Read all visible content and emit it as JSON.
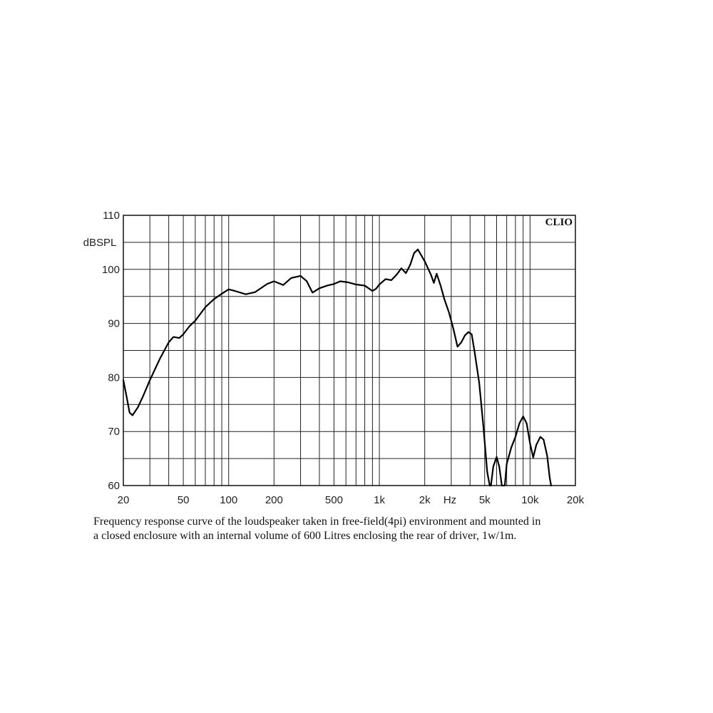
{
  "chart_data": {
    "type": "line",
    "brand_label": "CLIO",
    "ylabel": "dBSPL",
    "xlabel_unit": "Hz",
    "x_scale": "log",
    "xlim": [
      20,
      20000
    ],
    "ylim": [
      60,
      110
    ],
    "y_ticks": [
      {
        "value": 110,
        "label": "110"
      },
      {
        "value": 100,
        "label": "100"
      },
      {
        "value": 90,
        "label": "90"
      },
      {
        "value": 80,
        "label": "80"
      },
      {
        "value": 70,
        "label": "70"
      },
      {
        "value": 60,
        "label": "60"
      }
    ],
    "x_ticks": [
      {
        "value": 20,
        "label": "20"
      },
      {
        "value": 50,
        "label": "50"
      },
      {
        "value": 100,
        "label": "100"
      },
      {
        "value": 200,
        "label": "200"
      },
      {
        "value": 500,
        "label": "500"
      },
      {
        "value": 1000,
        "label": "1k"
      },
      {
        "value": 2000,
        "label": "2k"
      },
      {
        "value": 5000,
        "label": "5k"
      },
      {
        "value": 10000,
        "label": "10k"
      },
      {
        "value": 20000,
        "label": "20k"
      }
    ],
    "grid": true,
    "grid_x": [
      30,
      40,
      50,
      60,
      70,
      80,
      90,
      100,
      200,
      300,
      400,
      500,
      600,
      700,
      800,
      900,
      1000,
      2000,
      3000,
      4000,
      5000,
      6000,
      7000,
      8000,
      9000,
      10000
    ],
    "grid_y": [
      65,
      70,
      75,
      80,
      85,
      90,
      95,
      100,
      105
    ],
    "line_color": "#000000",
    "series": [
      {
        "points": [
          [
            20,
            79.5
          ],
          [
            21,
            76.5
          ],
          [
            22,
            73.5
          ],
          [
            23,
            73.0
          ],
          [
            25,
            74.5
          ],
          [
            27,
            76.5
          ],
          [
            30,
            79.5
          ],
          [
            35,
            83.5
          ],
          [
            40,
            86.5
          ],
          [
            43,
            87.5
          ],
          [
            47,
            87.3
          ],
          [
            50,
            88.0
          ],
          [
            55,
            89.5
          ],
          [
            60,
            90.5
          ],
          [
            70,
            93.0
          ],
          [
            80,
            94.5
          ],
          [
            90,
            95.5
          ],
          [
            100,
            96.3
          ],
          [
            110,
            96.0
          ],
          [
            130,
            95.4
          ],
          [
            150,
            95.8
          ],
          [
            180,
            97.3
          ],
          [
            200,
            97.8
          ],
          [
            230,
            97.1
          ],
          [
            260,
            98.4
          ],
          [
            300,
            98.8
          ],
          [
            330,
            97.8
          ],
          [
            360,
            95.7
          ],
          [
            400,
            96.5
          ],
          [
            450,
            97.0
          ],
          [
            500,
            97.3
          ],
          [
            550,
            97.8
          ],
          [
            620,
            97.6
          ],
          [
            700,
            97.2
          ],
          [
            800,
            97.0
          ],
          [
            900,
            96.0
          ],
          [
            950,
            96.4
          ],
          [
            1000,
            97.2
          ],
          [
            1100,
            98.2
          ],
          [
            1200,
            98.0
          ],
          [
            1300,
            99.0
          ],
          [
            1400,
            100.2
          ],
          [
            1500,
            99.3
          ],
          [
            1600,
            100.8
          ],
          [
            1700,
            103.0
          ],
          [
            1800,
            103.7
          ],
          [
            2000,
            101.5
          ],
          [
            2200,
            99.0
          ],
          [
            2300,
            97.5
          ],
          [
            2400,
            99.2
          ],
          [
            2550,
            97.0
          ],
          [
            2700,
            94.5
          ],
          [
            2900,
            92.0
          ],
          [
            3100,
            89.0
          ],
          [
            3300,
            85.7
          ],
          [
            3500,
            86.5
          ],
          [
            3700,
            87.8
          ],
          [
            3900,
            88.4
          ],
          [
            4100,
            88.0
          ],
          [
            4300,
            84.5
          ],
          [
            4600,
            79.0
          ],
          [
            4900,
            71.0
          ],
          [
            5200,
            62.5
          ],
          [
            5400,
            60.0
          ],
          [
            5500,
            60.0
          ],
          [
            5700,
            63.5
          ],
          [
            6000,
            65.3
          ],
          [
            6250,
            63.5
          ],
          [
            6500,
            60.0
          ],
          [
            6800,
            60.0
          ],
          [
            7000,
            64.0
          ],
          [
            7500,
            67.0
          ],
          [
            8000,
            69.0
          ],
          [
            8500,
            71.5
          ],
          [
            9000,
            72.8
          ],
          [
            9500,
            71.5
          ],
          [
            10000,
            67.8
          ],
          [
            10500,
            65.2
          ],
          [
            11000,
            67.5
          ],
          [
            11700,
            69.0
          ],
          [
            12300,
            68.5
          ],
          [
            13000,
            65.5
          ],
          [
            13500,
            61.5
          ],
          [
            13800,
            60.0
          ]
        ]
      }
    ]
  },
  "caption": {
    "line1": "Frequency response curve of the loudspeaker taken in free-field(4pi) environment and mounted in",
    "line2": "a closed enclosure  with an internal volume of 600 Litres enclosing the rear of driver, 1w/1m."
  }
}
